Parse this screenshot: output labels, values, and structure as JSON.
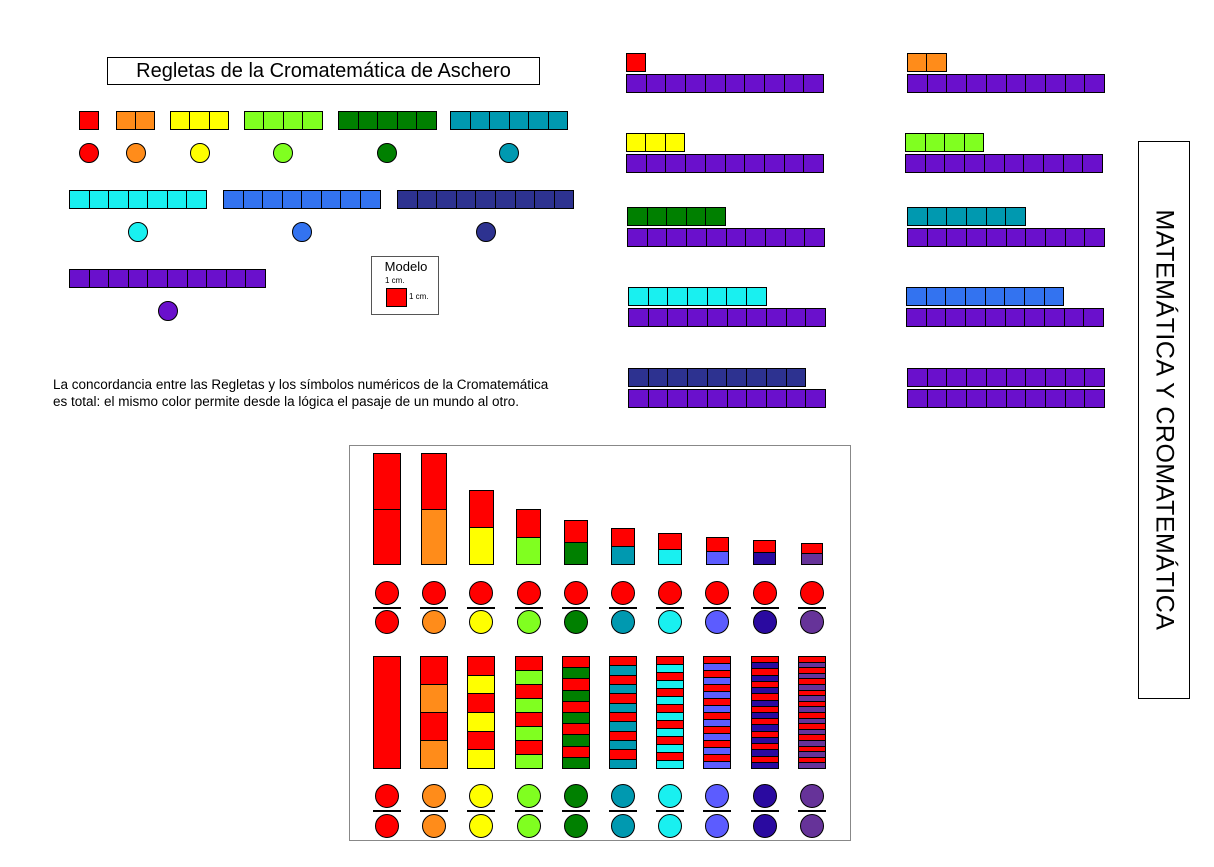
{
  "title": "Regletas de la Cromatemática de Aschero",
  "side_title": "MATEMÁTICA Y CROMATEMÁTICA",
  "description_line1": "La concordancia entre las Regletas y los símbolos numéricos de la Cromatemática",
  "description_line2": "es total: el mismo color permite desde la lógica el pasaje de un mundo al otro.",
  "model": {
    "title": "Modelo",
    "height_label": "1 cm.",
    "width_label": "1 cm.",
    "color": "#ff0000"
  },
  "palette": {
    "1": "#ff0000",
    "2": "#ff8c1a",
    "3": "#ffff00",
    "4": "#80ff20",
    "5": "#008000",
    "6": "#0099b0",
    "7": "#19f0f0",
    "8": "#3373f0",
    "9": "#2d3290",
    "10": "#6a10cc"
  },
  "fraction_denominator_colors": [
    "#ff0000",
    "#ff8c1a",
    "#ffff00",
    "#80ff20",
    "#008000",
    "#0099b0",
    "#19f0f0",
    "#5c5cff",
    "#2a0aa0",
    "#663399"
  ],
  "fraction_numerator_color": "#ff0000",
  "rods_catalog": [
    1,
    2,
    3,
    4,
    5,
    6,
    7,
    8,
    9,
    10
  ],
  "comparison_pairs": [
    {
      "rod": 1,
      "base": 10
    },
    {
      "rod": 2,
      "base": 10
    },
    {
      "rod": 3,
      "base": 10
    },
    {
      "rod": 4,
      "base": 10
    },
    {
      "rod": 5,
      "base": 10
    },
    {
      "rod": 6,
      "base": 10
    },
    {
      "rod": 7,
      "base": 10
    },
    {
      "rod": 8,
      "base": 10
    },
    {
      "rod": 9,
      "base": 10
    },
    {
      "rod": 10,
      "base": 10
    }
  ],
  "fraction_columns": [
    1,
    2,
    3,
    4,
    5,
    6,
    7,
    8,
    9,
    10
  ]
}
